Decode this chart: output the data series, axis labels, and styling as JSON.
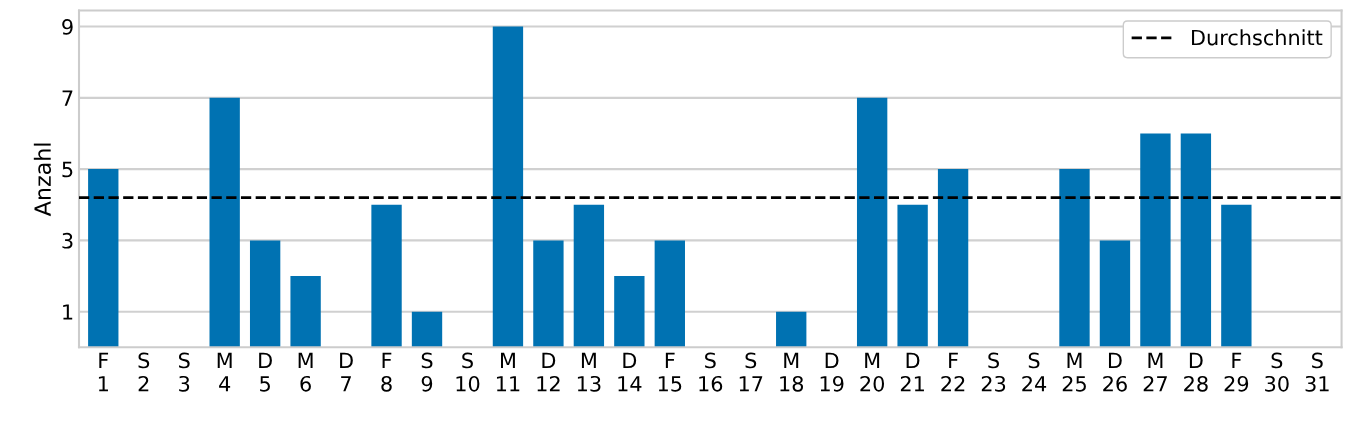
{
  "chart_data": {
    "type": "bar",
    "ylabel": "Anzahl",
    "categories": [
      "F\n1",
      "S\n2",
      "S\n3",
      "M\n4",
      "D\n5",
      "M\n6",
      "D\n7",
      "F\n8",
      "S\n9",
      "S\n10",
      "M\n11",
      "D\n12",
      "M\n13",
      "D\n14",
      "F\n15",
      "S\n16",
      "S\n17",
      "M\n18",
      "D\n19",
      "M\n20",
      "D\n21",
      "F\n22",
      "S\n23",
      "S\n24",
      "M\n25",
      "D\n26",
      "M\n27",
      "D\n28",
      "F\n29",
      "S\n30",
      "S\n31"
    ],
    "values": [
      5,
      0,
      0,
      7,
      3,
      2,
      0,
      4,
      1,
      0,
      9,
      3,
      4,
      2,
      3,
      0,
      0,
      1,
      0,
      7,
      4,
      5,
      0,
      0,
      5,
      3,
      6,
      6,
      4,
      0,
      0
    ],
    "color": "#0072b2",
    "ylim": [
      0,
      9.45
    ],
    "yticks": [
      1,
      3,
      5,
      7,
      9
    ],
    "grid": "y",
    "legend": "top right",
    "ref_lines": [
      {
        "axis": "y",
        "value": 4.2,
        "label": "Durchschnitt",
        "color": "#000000",
        "line_style": "dashed"
      }
    ]
  }
}
